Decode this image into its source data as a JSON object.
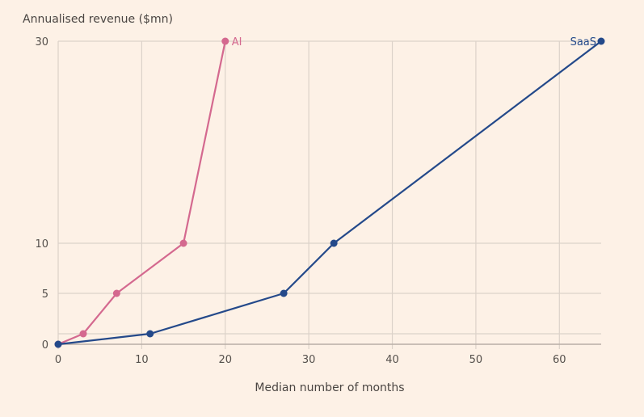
{
  "chart_data": {
    "type": "line",
    "title": "",
    "ylabel": "Annualised revenue ($mn)",
    "xlabel": "Median number of months",
    "xlim": [
      0,
      65
    ],
    "ylim": [
      0,
      30
    ],
    "x_ticks": [
      0,
      10,
      20,
      30,
      40,
      50,
      60
    ],
    "y_ticks": [
      0,
      5,
      10,
      30
    ],
    "y_gridlines": [
      1,
      5,
      10,
      30
    ],
    "grid": true,
    "legend": "inline labels at series ends",
    "series": [
      {
        "name": "AI",
        "color": "#d4698f",
        "x": [
          0,
          3,
          7,
          15,
          20
        ],
        "y": [
          0,
          1,
          5,
          10,
          30
        ]
      },
      {
        "name": "SaaS",
        "color": "#24498a",
        "x": [
          0,
          11,
          27,
          33,
          65
        ],
        "y": [
          0,
          1,
          5,
          10,
          30
        ]
      }
    ]
  },
  "colors": {
    "background": "#fdf1e6",
    "grid": "#dcd2c9",
    "axis": "#b8aea6"
  }
}
